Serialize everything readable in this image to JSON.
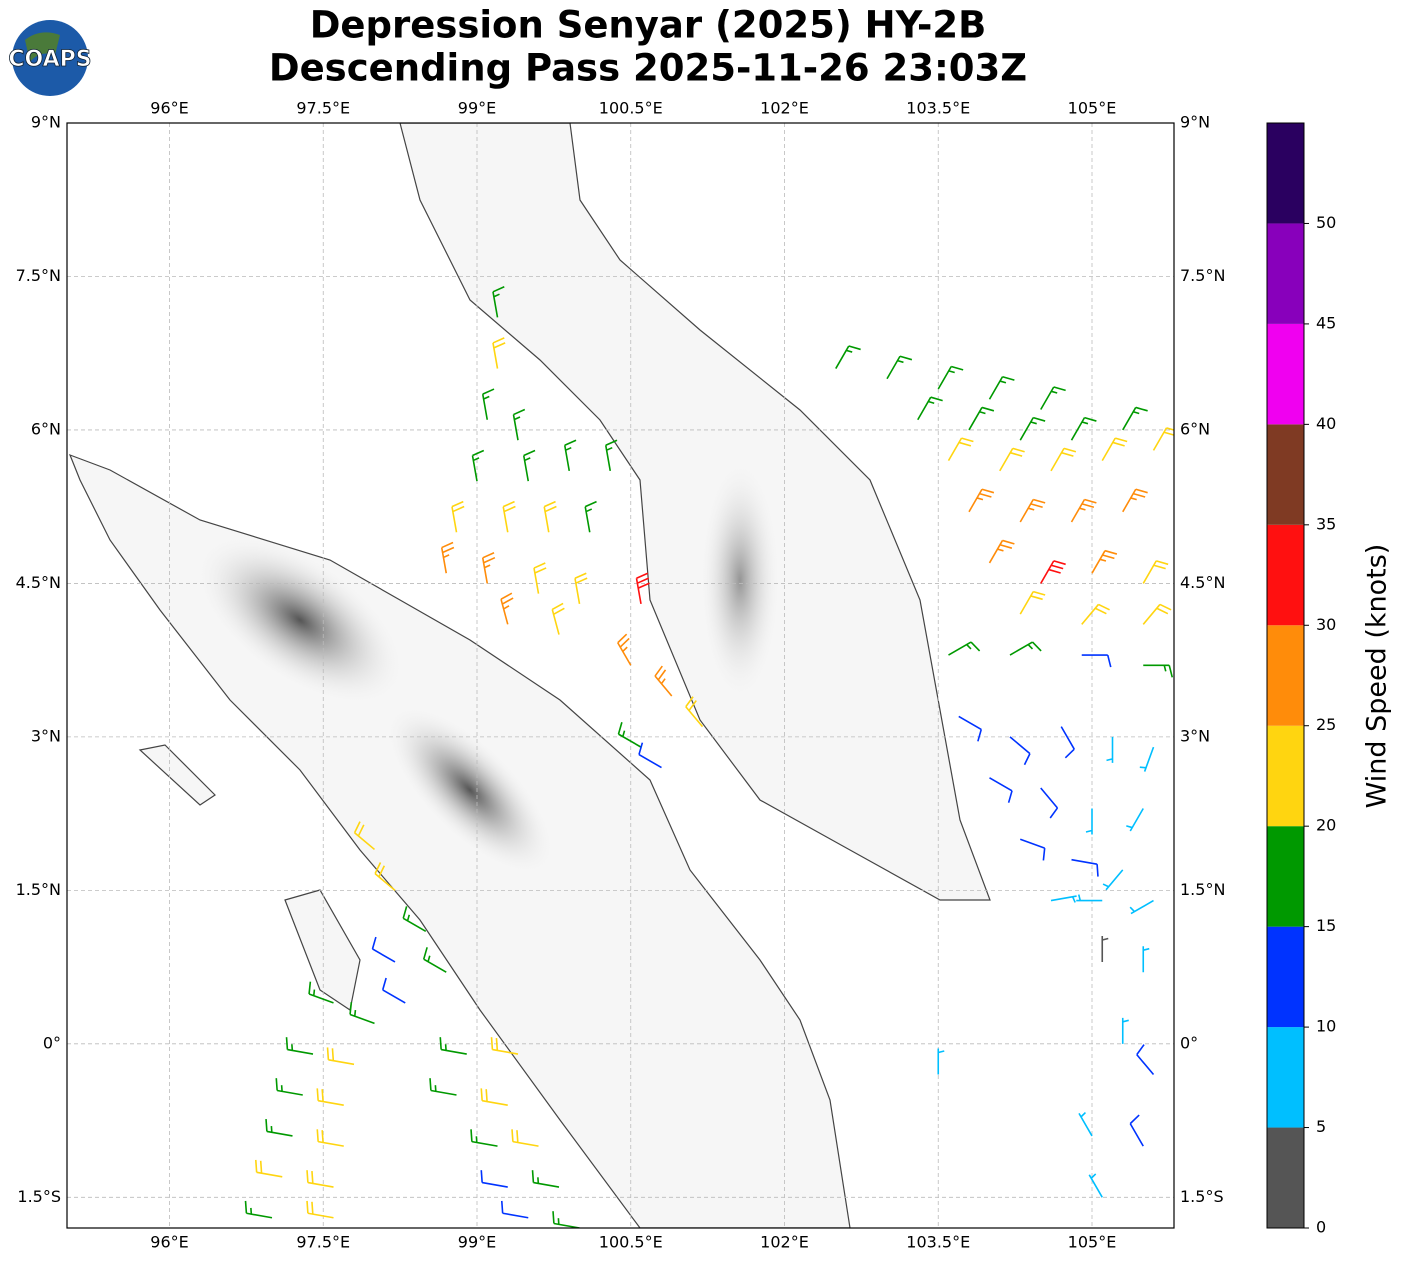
{
  "map": {
    "title_line1": "Depression Senyar (2025) HY-2B",
    "title_line2": "Descending Pass 2025-11-26 23:03Z",
    "logo_text": "COAPS",
    "lon_range": [
      95,
      105.8
    ],
    "lat_range": [
      -1.8,
      9
    ],
    "lon_ticks": [
      {
        "value": 96,
        "label": "96°E"
      },
      {
        "value": 97.5,
        "label": "97.5°E"
      },
      {
        "value": 99,
        "label": "99°E"
      },
      {
        "value": 100.5,
        "label": "100.5°E"
      },
      {
        "value": 102,
        "label": "102°E"
      },
      {
        "value": 103.5,
        "label": "103.5°E"
      },
      {
        "value": 105,
        "label": "105°E"
      }
    ],
    "lat_ticks": [
      {
        "value": 9,
        "label": "9°N"
      },
      {
        "value": 7.5,
        "label": "7.5°N"
      },
      {
        "value": 6,
        "label": "6°N"
      },
      {
        "value": 4.5,
        "label": "4.5°N"
      },
      {
        "value": 3,
        "label": "3°N"
      },
      {
        "value": 1.5,
        "label": "1.5°N"
      },
      {
        "value": 0,
        "label": "0°"
      },
      {
        "value": -1.5,
        "label": "1.5°S"
      }
    ],
    "colorbar": {
      "label": "Wind Speed (knots)",
      "bounds": [
        0,
        5,
        10,
        15,
        20,
        25,
        30,
        35,
        40,
        45,
        50,
        55
      ],
      "colors": [
        "#555555",
        "#00bfff",
        "#0033ff",
        "#009900",
        "#ffd510",
        "#ff8c0a",
        "#ff1010",
        "#7f3a23",
        "#f000f0",
        "#8800bb",
        "#2a0060"
      ],
      "ticks": [
        0,
        5,
        10,
        15,
        20,
        25,
        30,
        35,
        40,
        45,
        50
      ]
    },
    "barbs": [
      {
        "lon": 99.2,
        "lat": 7.1,
        "kt": 17,
        "from": 350
      },
      {
        "lon": 99.2,
        "lat": 6.6,
        "kt": 22,
        "from": 350
      },
      {
        "lon": 99.1,
        "lat": 6.1,
        "kt": 17,
        "from": 350
      },
      {
        "lon": 99.4,
        "lat": 5.9,
        "kt": 17,
        "from": 350
      },
      {
        "lon": 99.0,
        "lat": 5.5,
        "kt": 17,
        "from": 350
      },
      {
        "lon": 99.5,
        "lat": 5.5,
        "kt": 17,
        "from": 350
      },
      {
        "lon": 99.9,
        "lat": 5.6,
        "kt": 17,
        "from": 350
      },
      {
        "lon": 100.3,
        "lat": 5.6,
        "kt": 17,
        "from": 350
      },
      {
        "lon": 98.8,
        "lat": 5.0,
        "kt": 22,
        "from": 350
      },
      {
        "lon": 99.3,
        "lat": 5.0,
        "kt": 22,
        "from": 350
      },
      {
        "lon": 99.7,
        "lat": 5.0,
        "kt": 22,
        "from": 350
      },
      {
        "lon": 100.1,
        "lat": 5.0,
        "kt": 17,
        "from": 350
      },
      {
        "lon": 98.7,
        "lat": 4.6,
        "kt": 27,
        "from": 350
      },
      {
        "lon": 99.1,
        "lat": 4.5,
        "kt": 27,
        "from": 350
      },
      {
        "lon": 99.6,
        "lat": 4.4,
        "kt": 22,
        "from": 350
      },
      {
        "lon": 100.0,
        "lat": 4.3,
        "kt": 22,
        "from": 350
      },
      {
        "lon": 99.3,
        "lat": 4.1,
        "kt": 27,
        "from": 345
      },
      {
        "lon": 99.8,
        "lat": 4.0,
        "kt": 22,
        "from": 345
      },
      {
        "lon": 100.6,
        "lat": 4.3,
        "kt": 32,
        "from": 350
      },
      {
        "lon": 100.5,
        "lat": 3.7,
        "kt": 27,
        "from": 330
      },
      {
        "lon": 100.9,
        "lat": 3.4,
        "kt": 27,
        "from": 320
      },
      {
        "lon": 101.2,
        "lat": 3.1,
        "kt": 22,
        "from": 320
      },
      {
        "lon": 100.6,
        "lat": 2.9,
        "kt": 17,
        "from": 300
      },
      {
        "lon": 100.8,
        "lat": 2.7,
        "kt": 12,
        "from": 300
      },
      {
        "lon": 102.5,
        "lat": 6.6,
        "kt": 17,
        "from": 30
      },
      {
        "lon": 103.0,
        "lat": 6.5,
        "kt": 17,
        "from": 30
      },
      {
        "lon": 103.5,
        "lat": 6.4,
        "kt": 17,
        "from": 30
      },
      {
        "lon": 104.0,
        "lat": 6.3,
        "kt": 17,
        "from": 30
      },
      {
        "lon": 104.5,
        "lat": 6.2,
        "kt": 17,
        "from": 30
      },
      {
        "lon": 103.3,
        "lat": 6.1,
        "kt": 17,
        "from": 30
      },
      {
        "lon": 103.8,
        "lat": 6.0,
        "kt": 17,
        "from": 30
      },
      {
        "lon": 104.3,
        "lat": 5.9,
        "kt": 17,
        "from": 30
      },
      {
        "lon": 104.8,
        "lat": 5.9,
        "kt": 17,
        "from": 30
      },
      {
        "lon": 105.3,
        "lat": 6.0,
        "kt": 17,
        "from": 30
      },
      {
        "lon": 103.6,
        "lat": 5.7,
        "kt": 22,
        "from": 30
      },
      {
        "lon": 104.1,
        "lat": 5.6,
        "kt": 22,
        "from": 30
      },
      {
        "lon": 104.6,
        "lat": 5.6,
        "kt": 22,
        "from": 30
      },
      {
        "lon": 105.1,
        "lat": 5.7,
        "kt": 22,
        "from": 30
      },
      {
        "lon": 105.6,
        "lat": 5.8,
        "kt": 22,
        "from": 30
      },
      {
        "lon": 103.8,
        "lat": 5.2,
        "kt": 27,
        "from": 30
      },
      {
        "lon": 104.3,
        "lat": 5.1,
        "kt": 27,
        "from": 30
      },
      {
        "lon": 104.8,
        "lat": 5.1,
        "kt": 27,
        "from": 30
      },
      {
        "lon": 105.3,
        "lat": 5.2,
        "kt": 27,
        "from": 30
      },
      {
        "lon": 104.0,
        "lat": 4.7,
        "kt": 27,
        "from": 30
      },
      {
        "lon": 104.5,
        "lat": 4.5,
        "kt": 32,
        "from": 30
      },
      {
        "lon": 105.0,
        "lat": 4.6,
        "kt": 27,
        "from": 30
      },
      {
        "lon": 105.5,
        "lat": 4.5,
        "kt": 22,
        "from": 30
      },
      {
        "lon": 104.3,
        "lat": 4.2,
        "kt": 22,
        "from": 30
      },
      {
        "lon": 104.9,
        "lat": 4.1,
        "kt": 22,
        "from": 40
      },
      {
        "lon": 105.5,
        "lat": 4.1,
        "kt": 22,
        "from": 40
      },
      {
        "lon": 103.6,
        "lat": 3.8,
        "kt": 17,
        "from": 60
      },
      {
        "lon": 104.2,
        "lat": 3.8,
        "kt": 17,
        "from": 60
      },
      {
        "lon": 104.9,
        "lat": 3.8,
        "kt": 12,
        "from": 90
      },
      {
        "lon": 105.5,
        "lat": 3.7,
        "kt": 17,
        "from": 90
      },
      {
        "lon": 103.7,
        "lat": 3.2,
        "kt": 12,
        "from": 120
      },
      {
        "lon": 104.2,
        "lat": 3.0,
        "kt": 12,
        "from": 130
      },
      {
        "lon": 104.7,
        "lat": 3.1,
        "kt": 12,
        "from": 150
      },
      {
        "lon": 105.2,
        "lat": 3.0,
        "kt": 7,
        "from": 180
      },
      {
        "lon": 105.6,
        "lat": 2.9,
        "kt": 7,
        "from": 200
      },
      {
        "lon": 104.0,
        "lat": 2.6,
        "kt": 12,
        "from": 120
      },
      {
        "lon": 104.5,
        "lat": 2.5,
        "kt": 12,
        "from": 140
      },
      {
        "lon": 105.0,
        "lat": 2.3,
        "kt": 7,
        "from": 180
      },
      {
        "lon": 105.5,
        "lat": 2.3,
        "kt": 7,
        "from": 210
      },
      {
        "lon": 104.3,
        "lat": 2.0,
        "kt": 12,
        "from": 110
      },
      {
        "lon": 104.8,
        "lat": 1.8,
        "kt": 12,
        "from": 100
      },
      {
        "lon": 105.3,
        "lat": 1.7,
        "kt": 7,
        "from": 220
      },
      {
        "lon": 104.6,
        "lat": 1.4,
        "kt": 7,
        "from": 80
      },
      {
        "lon": 105.1,
        "lat": 1.4,
        "kt": 7,
        "from": 270
      },
      {
        "lon": 105.6,
        "lat": 1.4,
        "kt": 7,
        "from": 240
      },
      {
        "lon": 105.1,
        "lat": 0.8,
        "kt": 3,
        "from": 0
      },
      {
        "lon": 105.5,
        "lat": 0.7,
        "kt": 7,
        "from": 0
      },
      {
        "lon": 105.3,
        "lat": 0.0,
        "kt": 7,
        "from": 0
      },
      {
        "lon": 105.6,
        "lat": -0.3,
        "kt": 12,
        "from": 320
      },
      {
        "lon": 105.0,
        "lat": -0.9,
        "kt": 7,
        "from": 330
      },
      {
        "lon": 105.5,
        "lat": -1.0,
        "kt": 12,
        "from": 330
      },
      {
        "lon": 105.1,
        "lat": -1.5,
        "kt": 7,
        "from": 330
      },
      {
        "lon": 103.5,
        "lat": -0.3,
        "kt": 7,
        "from": 0
      },
      {
        "lon": 98.0,
        "lat": 1.9,
        "kt": 22,
        "from": 310
      },
      {
        "lon": 98.2,
        "lat": 1.5,
        "kt": 22,
        "from": 310
      },
      {
        "lon": 98.5,
        "lat": 1.1,
        "kt": 17,
        "from": 300
      },
      {
        "lon": 98.2,
        "lat": 0.8,
        "kt": 12,
        "from": 300
      },
      {
        "lon": 98.7,
        "lat": 0.7,
        "kt": 17,
        "from": 300
      },
      {
        "lon": 98.3,
        "lat": 0.4,
        "kt": 12,
        "from": 300
      },
      {
        "lon": 97.6,
        "lat": 0.4,
        "kt": 17,
        "from": 290
      },
      {
        "lon": 98.0,
        "lat": 0.2,
        "kt": 17,
        "from": 290
      },
      {
        "lon": 97.4,
        "lat": -0.1,
        "kt": 17,
        "from": 280
      },
      {
        "lon": 97.8,
        "lat": -0.2,
        "kt": 22,
        "from": 280
      },
      {
        "lon": 97.3,
        "lat": -0.5,
        "kt": 17,
        "from": 280
      },
      {
        "lon": 97.7,
        "lat": -0.6,
        "kt": 22,
        "from": 280
      },
      {
        "lon": 97.2,
        "lat": -0.9,
        "kt": 17,
        "from": 280
      },
      {
        "lon": 97.7,
        "lat": -1.0,
        "kt": 22,
        "from": 280
      },
      {
        "lon": 97.1,
        "lat": -1.3,
        "kt": 22,
        "from": 280
      },
      {
        "lon": 97.6,
        "lat": -1.4,
        "kt": 22,
        "from": 280
      },
      {
        "lon": 97.0,
        "lat": -1.7,
        "kt": 17,
        "from": 280
      },
      {
        "lon": 97.6,
        "lat": -1.7,
        "kt": 22,
        "from": 280
      },
      {
        "lon": 98.9,
        "lat": -0.1,
        "kt": 17,
        "from": 280
      },
      {
        "lon": 99.4,
        "lat": -0.1,
        "kt": 22,
        "from": 280
      },
      {
        "lon": 98.8,
        "lat": -0.5,
        "kt": 17,
        "from": 280
      },
      {
        "lon": 99.3,
        "lat": -0.6,
        "kt": 22,
        "from": 280
      },
      {
        "lon": 99.2,
        "lat": -1.0,
        "kt": 17,
        "from": 280
      },
      {
        "lon": 99.6,
        "lat": -1.0,
        "kt": 22,
        "from": 280
      },
      {
        "lon": 99.3,
        "lat": -1.4,
        "kt": 12,
        "from": 280
      },
      {
        "lon": 99.8,
        "lat": -1.4,
        "kt": 17,
        "from": 280
      },
      {
        "lon": 99.5,
        "lat": -1.7,
        "kt": 12,
        "from": 280
      },
      {
        "lon": 100.0,
        "lat": -1.8,
        "kt": 17,
        "from": 280
      }
    ]
  }
}
